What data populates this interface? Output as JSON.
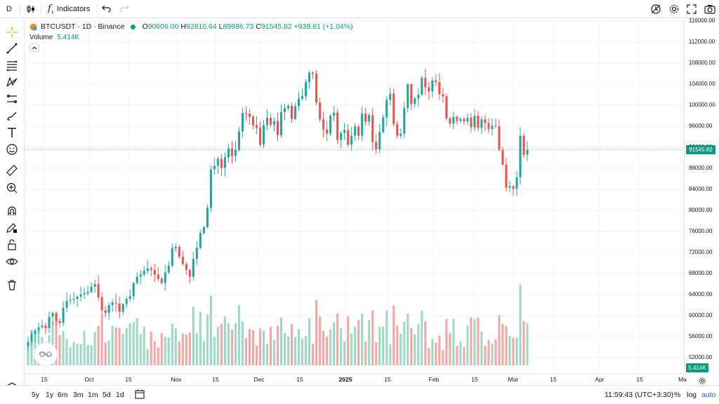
{
  "topbar": {
    "symbol_short": "D",
    "indicators_label": "Indicators"
  },
  "legend": {
    "symbol": "BTCUSDT",
    "interval": "1D",
    "exchange": "Binance",
    "title": "BTCUSDT · 1D · Binance",
    "open_label": "O",
    "open": "90606.00",
    "high_label": "H",
    "high": "92810.64",
    "low_label": "L",
    "low": "89986.73",
    "close_label": "C",
    "close": "91545.82",
    "change": "+939.81 (+1.04%)",
    "volume_label": "Volume",
    "volume_value": "5.414K"
  },
  "price_axis": {
    "ticks": [
      "116000.00",
      "112000.00",
      "108000.00",
      "104000.00",
      "100000.00",
      "96000.00",
      "92000.00",
      "88000.00",
      "84000.00",
      "80000.00",
      "76000.00",
      "72000.00",
      "68000.00",
      "64000.00",
      "60000.00",
      "56000.00",
      "52000.00"
    ],
    "last_price": "91545.82",
    "last_volume": "5.414K"
  },
  "time_axis": {
    "labels": [
      {
        "text": "15",
        "bold": false
      },
      {
        "text": "Oct",
        "bold": false
      },
      {
        "text": "15",
        "bold": false
      },
      {
        "text": "Nov",
        "bold": false
      },
      {
        "text": "15",
        "bold": false
      },
      {
        "text": "Dec",
        "bold": false
      },
      {
        "text": "15",
        "bold": false
      },
      {
        "text": "2025",
        "bold": true
      },
      {
        "text": "15",
        "bold": false
      },
      {
        "text": "Feb",
        "bold": false
      },
      {
        "text": "15",
        "bold": false
      },
      {
        "text": "Mar",
        "bold": false
      },
      {
        "text": "15",
        "bold": false
      },
      {
        "text": "Apr",
        "bold": false
      },
      {
        "text": "15",
        "bold": false
      },
      {
        "text": "Ma",
        "bold": false
      }
    ]
  },
  "bottombar": {
    "ranges": [
      "5y",
      "1y",
      "6m",
      "3m",
      "1m",
      "5d",
      "1d"
    ],
    "clock": "11:59:43 (UTC+3:30)",
    "percent": "%",
    "log": "log",
    "auto": "auto"
  },
  "colors": {
    "up": "#26a69a",
    "down": "#ef5350",
    "vol_up": "#9fd9c4",
    "vol_down": "#f4a7a7",
    "accent": "#089981"
  },
  "chart_data": {
    "type": "candlestick",
    "symbol": "BTCUSDT",
    "interval": "1D",
    "y_range": [
      50000,
      117000
    ],
    "closes": [
      55000,
      56500,
      57200,
      57800,
      58100,
      57600,
      59800,
      60500,
      59000,
      58600,
      61500,
      62800,
      63000,
      63200,
      63600,
      64000,
      64200,
      64500,
      65500,
      66000,
      63500,
      61000,
      60500,
      62000,
      62500,
      62300,
      60700,
      62200,
      63200,
      63700,
      66200,
      67400,
      67800,
      68500,
      69000,
      68700,
      67800,
      67000,
      66200,
      68200,
      69500,
      72800,
      73100,
      71200,
      69800,
      68700,
      67400,
      70800,
      72900,
      75700,
      76800,
      80500,
      87800,
      88500,
      89800,
      88100,
      90100,
      91800,
      90400,
      91500,
      95000,
      98500,
      98400,
      97800,
      96200,
      95700,
      92500,
      96200,
      97600,
      96300,
      97000,
      94300,
      98700,
      99400,
      99900,
      97400,
      99800,
      101200,
      101700,
      104400,
      106200,
      106000,
      100500,
      97300,
      95400,
      94600,
      98000,
      98600,
      93400,
      94700,
      95300,
      92500,
      94200,
      95900,
      94200,
      98400,
      96900,
      98100,
      93000,
      91600,
      94900,
      97700,
      101000,
      102200,
      96400,
      94200,
      94600,
      99500,
      104000,
      100200,
      101300,
      102000,
      105200,
      103400,
      102600,
      104700,
      104400,
      102100,
      101700,
      97500,
      96500,
      97800,
      97000,
      97400,
      96900,
      97600,
      95800,
      98000,
      95700,
      97300,
      96600,
      95500,
      96100,
      96000,
      91500,
      88700,
      84300,
      84600,
      84100,
      86300,
      94200,
      90600,
      91545
    ]
  }
}
